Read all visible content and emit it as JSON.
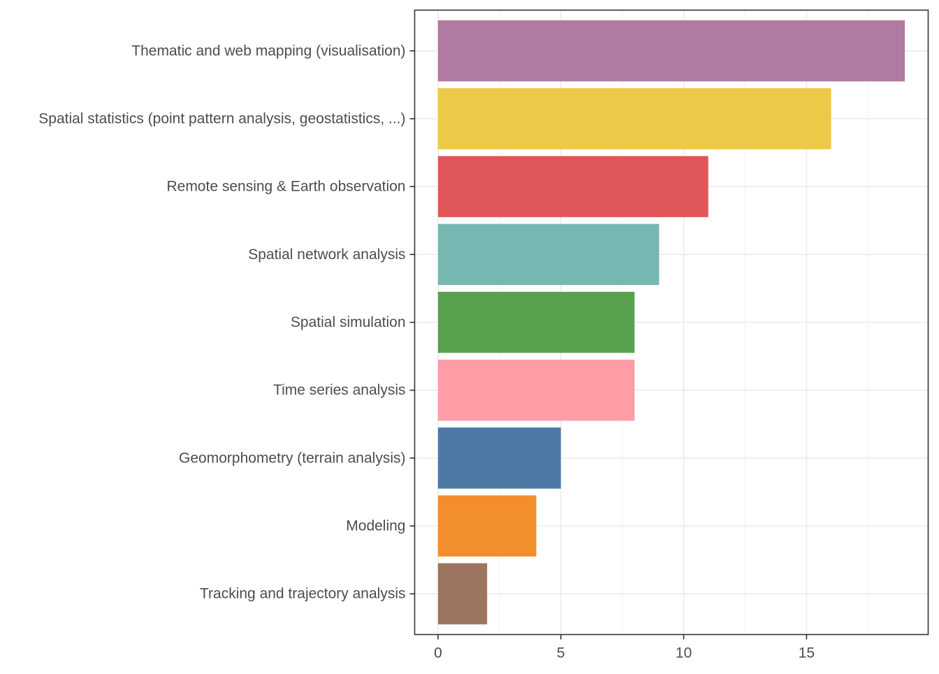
{
  "chart_data": {
    "type": "bar",
    "orientation": "horizontal",
    "title": "",
    "xlabel": "",
    "ylabel": "",
    "categories": [
      "Thematic and web mapping (visualisation)",
      "Spatial statistics (point pattern analysis, geostatistics, ...)",
      "Remote sensing & Earth observation",
      "Spatial network analysis",
      "Spatial simulation",
      "Time series analysis",
      "Geomorphometry (terrain analysis)",
      "Modeling",
      "Tracking and trajectory analysis"
    ],
    "values": [
      19,
      16,
      11,
      9,
      8,
      8,
      5,
      4,
      2
    ],
    "colors": [
      "#b07aa1",
      "#edc948",
      "#e15759",
      "#76b7b2",
      "#59a14f",
      "#ff9da7",
      "#4e79a7",
      "#f28e2b",
      "#9c755f"
    ],
    "xlim": [
      -0.95,
      19.95
    ],
    "xticks": [
      0,
      5,
      10,
      15
    ],
    "xtick_labels": [
      "0",
      "5",
      "10",
      "15"
    ],
    "grid": true,
    "legend": "none"
  }
}
